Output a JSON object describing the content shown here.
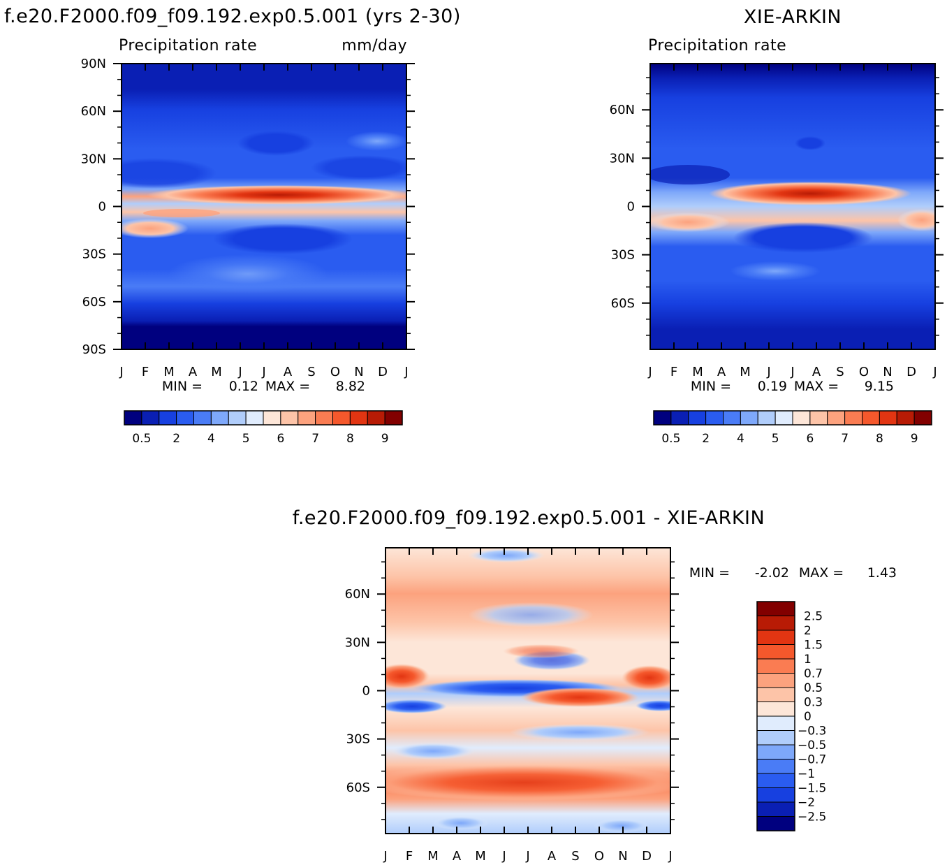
{
  "chart_data": [
    {
      "type": "heatmap",
      "title": "f.e20.F2000.f09_f09.192.exp0.5.001 (yrs 2-30)",
      "subtitle_left": "Precipitation rate",
      "units": "mm/day",
      "x_ticks": [
        "J",
        "F",
        "M",
        "A",
        "M",
        "J",
        "J",
        "A",
        "S",
        "O",
        "N",
        "D",
        "J"
      ],
      "y_ticks": [
        "90N",
        "60N",
        "30N",
        "0",
        "30S",
        "60S",
        "90S"
      ],
      "y_tick_values": [
        90,
        60,
        30,
        0,
        -30,
        -60,
        -90
      ],
      "ylim": [
        -90,
        90
      ],
      "min_label": "MIN =",
      "min_value": "0.12",
      "max_label": "MAX =",
      "max_value": "8.82",
      "colorbar_labels": [
        "0.5",
        "2",
        "4",
        "5",
        "6",
        "7",
        "8",
        "9"
      ],
      "colorbar_colors": [
        "#00007f",
        "#0a1fb4",
        "#1740e0",
        "#2a5cf0",
        "#4a7cf6",
        "#7ea8fa",
        "#b0cdfb",
        "#e0ecfd",
        "#fde6d8",
        "#fdc4a8",
        "#fca27e",
        "#fa7c52",
        "#f5582c",
        "#e23512",
        "#b81b05",
        "#820000"
      ],
      "peak": {
        "lat": 9,
        "month": 6.5,
        "value": 8.82
      }
    },
    {
      "type": "heatmap",
      "title": "XIE-ARKIN",
      "subtitle_left": "Precipitation rate",
      "x_ticks": [
        "J",
        "F",
        "M",
        "A",
        "M",
        "J",
        "J",
        "A",
        "S",
        "O",
        "N",
        "D",
        "J"
      ],
      "y_ticks": [
        "60N",
        "30N",
        "0",
        "30S",
        "60S"
      ],
      "y_tick_values": [
        60,
        30,
        0,
        -30,
        -60
      ],
      "ylim": [
        -88.75,
        88.75
      ],
      "min_label": "MIN =",
      "min_value": "0.19",
      "max_label": "MAX =",
      "max_value": "9.15",
      "colorbar_labels": [
        "0.5",
        "2",
        "4",
        "5",
        "6",
        "7",
        "8",
        "9"
      ],
      "colorbar_colors": [
        "#00007f",
        "#0a1fb4",
        "#1740e0",
        "#2a5cf0",
        "#4a7cf6",
        "#7ea8fa",
        "#b0cdfb",
        "#e0ecfd",
        "#fde6d8",
        "#fdc4a8",
        "#fca27e",
        "#fa7c52",
        "#f5582c",
        "#e23512",
        "#b81b05",
        "#820000"
      ],
      "peak": {
        "lat": 8,
        "month": 7,
        "value": 9.15
      }
    },
    {
      "type": "heatmap",
      "title": "f.e20.F2000.f09_f09.192.exp0.5.001 - XIE-ARKIN",
      "x_ticks": [
        "J",
        "F",
        "M",
        "A",
        "M",
        "J",
        "J",
        "A",
        "S",
        "O",
        "N",
        "D",
        "J"
      ],
      "y_ticks": [
        "60N",
        "30N",
        "0",
        "30S",
        "60S"
      ],
      "y_tick_values": [
        60,
        30,
        0,
        -30,
        -60
      ],
      "ylim": [
        -88.75,
        88.75
      ],
      "min_label": "MIN =",
      "min_value": "-2.02",
      "max_label": "MAX =",
      "max_value": "1.43",
      "colorbar_labels": [
        "2.5",
        "2",
        "1.5",
        "1",
        "0.7",
        "0.5",
        "0.3",
        "0",
        "-0.3",
        "-0.5",
        "-0.7",
        "-1",
        "-1.5",
        "-2",
        "-2.5"
      ],
      "colorbar_colors": [
        "#820000",
        "#b81b05",
        "#e23512",
        "#f5582c",
        "#fa7c52",
        "#fca27e",
        "#fdc4a8",
        "#fde6d8",
        "#e0ecfd",
        "#b0cdfb",
        "#7ea8fa",
        "#4a7cf6",
        "#2a5cf0",
        "#1740e0",
        "#0a1fb4",
        "#00007f"
      ]
    }
  ]
}
